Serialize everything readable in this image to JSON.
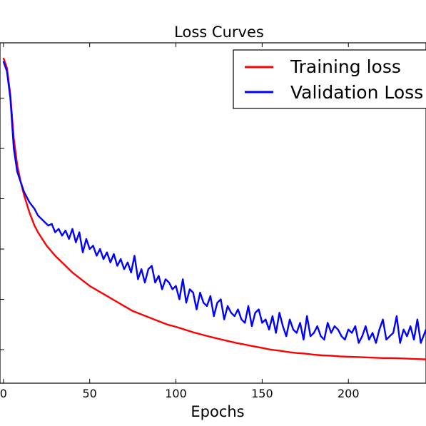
{
  "chart_data": {
    "type": "line",
    "title": "Loss Curves",
    "xlabel": "Epochs",
    "ylabel": "",
    "xlim": [
      0,
      245
    ],
    "ylim": [
      0,
      1
    ],
    "x_ticks": [
      0,
      50,
      100,
      150,
      200
    ],
    "x_tick_labels": [
      "0",
      "50",
      "100",
      "150",
      "200"
    ],
    "grid": false,
    "legend_position": "top-right",
    "series": [
      {
        "name": "Training loss",
        "color": "#ff0000",
        "x": [
          0,
          2,
          4,
          6,
          8,
          10,
          12,
          15,
          18,
          20,
          25,
          30,
          35,
          40,
          45,
          50,
          55,
          60,
          65,
          70,
          75,
          80,
          85,
          90,
          95,
          100,
          105,
          110,
          115,
          120,
          125,
          130,
          135,
          140,
          145,
          150,
          155,
          160,
          165,
          170,
          175,
          180,
          185,
          190,
          195,
          200,
          205,
          210,
          215,
          220,
          225,
          230,
          235,
          240,
          245
        ],
        "y": [
          0.97,
          0.94,
          0.86,
          0.73,
          0.65,
          0.6,
          0.56,
          0.51,
          0.47,
          0.45,
          0.41,
          0.38,
          0.355,
          0.33,
          0.31,
          0.29,
          0.275,
          0.26,
          0.245,
          0.23,
          0.215,
          0.205,
          0.195,
          0.185,
          0.175,
          0.168,
          0.16,
          0.152,
          0.145,
          0.138,
          0.132,
          0.126,
          0.12,
          0.115,
          0.11,
          0.105,
          0.1,
          0.097,
          0.093,
          0.09,
          0.088,
          0.085,
          0.083,
          0.082,
          0.08,
          0.079,
          0.078,
          0.077,
          0.076,
          0.075,
          0.075,
          0.074,
          0.073,
          0.072,
          0.071
        ]
      },
      {
        "name": "Validation Loss",
        "color": "#0000ff",
        "x": [
          0,
          2,
          4,
          6,
          8,
          10,
          12,
          15,
          18,
          20,
          22,
          24,
          26,
          28,
          30,
          32,
          34,
          36,
          38,
          40,
          42,
          44,
          46,
          48,
          50,
          52,
          54,
          56,
          58,
          60,
          62,
          64,
          66,
          68,
          70,
          72,
          74,
          76,
          78,
          80,
          82,
          84,
          86,
          88,
          90,
          92,
          94,
          96,
          98,
          100,
          102,
          104,
          106,
          108,
          110,
          112,
          114,
          116,
          118,
          120,
          122,
          124,
          126,
          128,
          130,
          132,
          134,
          136,
          138,
          140,
          142,
          144,
          146,
          148,
          150,
          152,
          154,
          156,
          158,
          160,
          162,
          164,
          166,
          168,
          170,
          172,
          174,
          176,
          178,
          180,
          182,
          184,
          186,
          188,
          190,
          192,
          194,
          196,
          198,
          200,
          202,
          204,
          206,
          208,
          210,
          212,
          214,
          216,
          218,
          220,
          222,
          224,
          226,
          228,
          230,
          232,
          234,
          236,
          238,
          240,
          242,
          245
        ],
        "y": [
          0.96,
          0.93,
          0.85,
          0.7,
          0.63,
          0.6,
          0.57,
          0.54,
          0.52,
          0.5,
          0.49,
          0.48,
          0.47,
          0.475,
          0.45,
          0.46,
          0.44,
          0.455,
          0.43,
          0.46,
          0.42,
          0.45,
          0.39,
          0.43,
          0.4,
          0.41,
          0.38,
          0.4,
          0.37,
          0.39,
          0.36,
          0.385,
          0.35,
          0.37,
          0.34,
          0.36,
          0.33,
          0.38,
          0.31,
          0.34,
          0.3,
          0.34,
          0.35,
          0.3,
          0.32,
          0.28,
          0.31,
          0.3,
          0.28,
          0.29,
          0.25,
          0.31,
          0.24,
          0.28,
          0.27,
          0.22,
          0.27,
          0.24,
          0.23,
          0.26,
          0.2,
          0.24,
          0.25,
          0.19,
          0.23,
          0.21,
          0.2,
          0.22,
          0.19,
          0.18,
          0.23,
          0.17,
          0.21,
          0.22,
          0.18,
          0.19,
          0.16,
          0.2,
          0.15,
          0.21,
          0.17,
          0.14,
          0.19,
          0.16,
          0.15,
          0.18,
          0.13,
          0.2,
          0.14,
          0.15,
          0.17,
          0.14,
          0.13,
          0.18,
          0.15,
          0.17,
          0.16,
          0.14,
          0.13,
          0.16,
          0.15,
          0.17,
          0.12,
          0.14,
          0.17,
          0.13,
          0.15,
          0.12,
          0.16,
          0.19,
          0.13,
          0.14,
          0.15,
          0.2,
          0.12,
          0.16,
          0.14,
          0.17,
          0.13,
          0.19,
          0.12,
          0.16
        ]
      }
    ]
  }
}
